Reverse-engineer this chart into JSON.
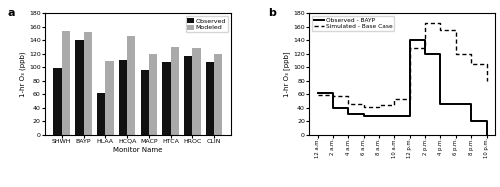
{
  "panel_a": {
    "categories": [
      "SHWH",
      "BAYP",
      "HLAA",
      "HCQA",
      "MACP",
      "HTCA",
      "HROC",
      "CLIN"
    ],
    "observed": [
      98,
      140,
      62,
      110,
      95,
      108,
      116,
      107
    ],
    "modeled": [
      153,
      152,
      109,
      146,
      120,
      130,
      129,
      119
    ],
    "ylabel": "1-hr O₃ (ppb)",
    "xlabel": "Monitor Name",
    "ylim": [
      0,
      180
    ],
    "yticks": [
      0,
      20,
      40,
      60,
      80,
      100,
      120,
      140,
      160,
      180
    ],
    "observed_color": "#111111",
    "modeled_color": "#aaaaaa",
    "label": "a"
  },
  "panel_b": {
    "x_labels": [
      "12 a.m.",
      "2 a.m.",
      "4 a.m.",
      "6 a.m.",
      "8 a.m.",
      "10 a.m.",
      "12 p.m.",
      "2 p.m.",
      "4 p.m.",
      "6 p.m.",
      "8 p.m.",
      "10 p.m."
    ],
    "observed_x": [
      0,
      1,
      2,
      3,
      4,
      5,
      6,
      7,
      8,
      9,
      10,
      11
    ],
    "observed_y": [
      61,
      40,
      30,
      28,
      28,
      28,
      140,
      120,
      45,
      45,
      20,
      0
    ],
    "simulated_x": [
      0,
      1,
      2,
      3,
      4,
      5,
      6,
      7,
      8,
      9,
      10,
      11
    ],
    "simulated_y": [
      59,
      57,
      46,
      41,
      44,
      53,
      128,
      165,
      155,
      120,
      105,
      80
    ],
    "ylabel": "1-hr O₃ [ppb]",
    "ylim": [
      0,
      180
    ],
    "yticks": [
      0,
      20,
      40,
      60,
      80,
      100,
      120,
      140,
      160,
      180
    ],
    "label": "b"
  }
}
